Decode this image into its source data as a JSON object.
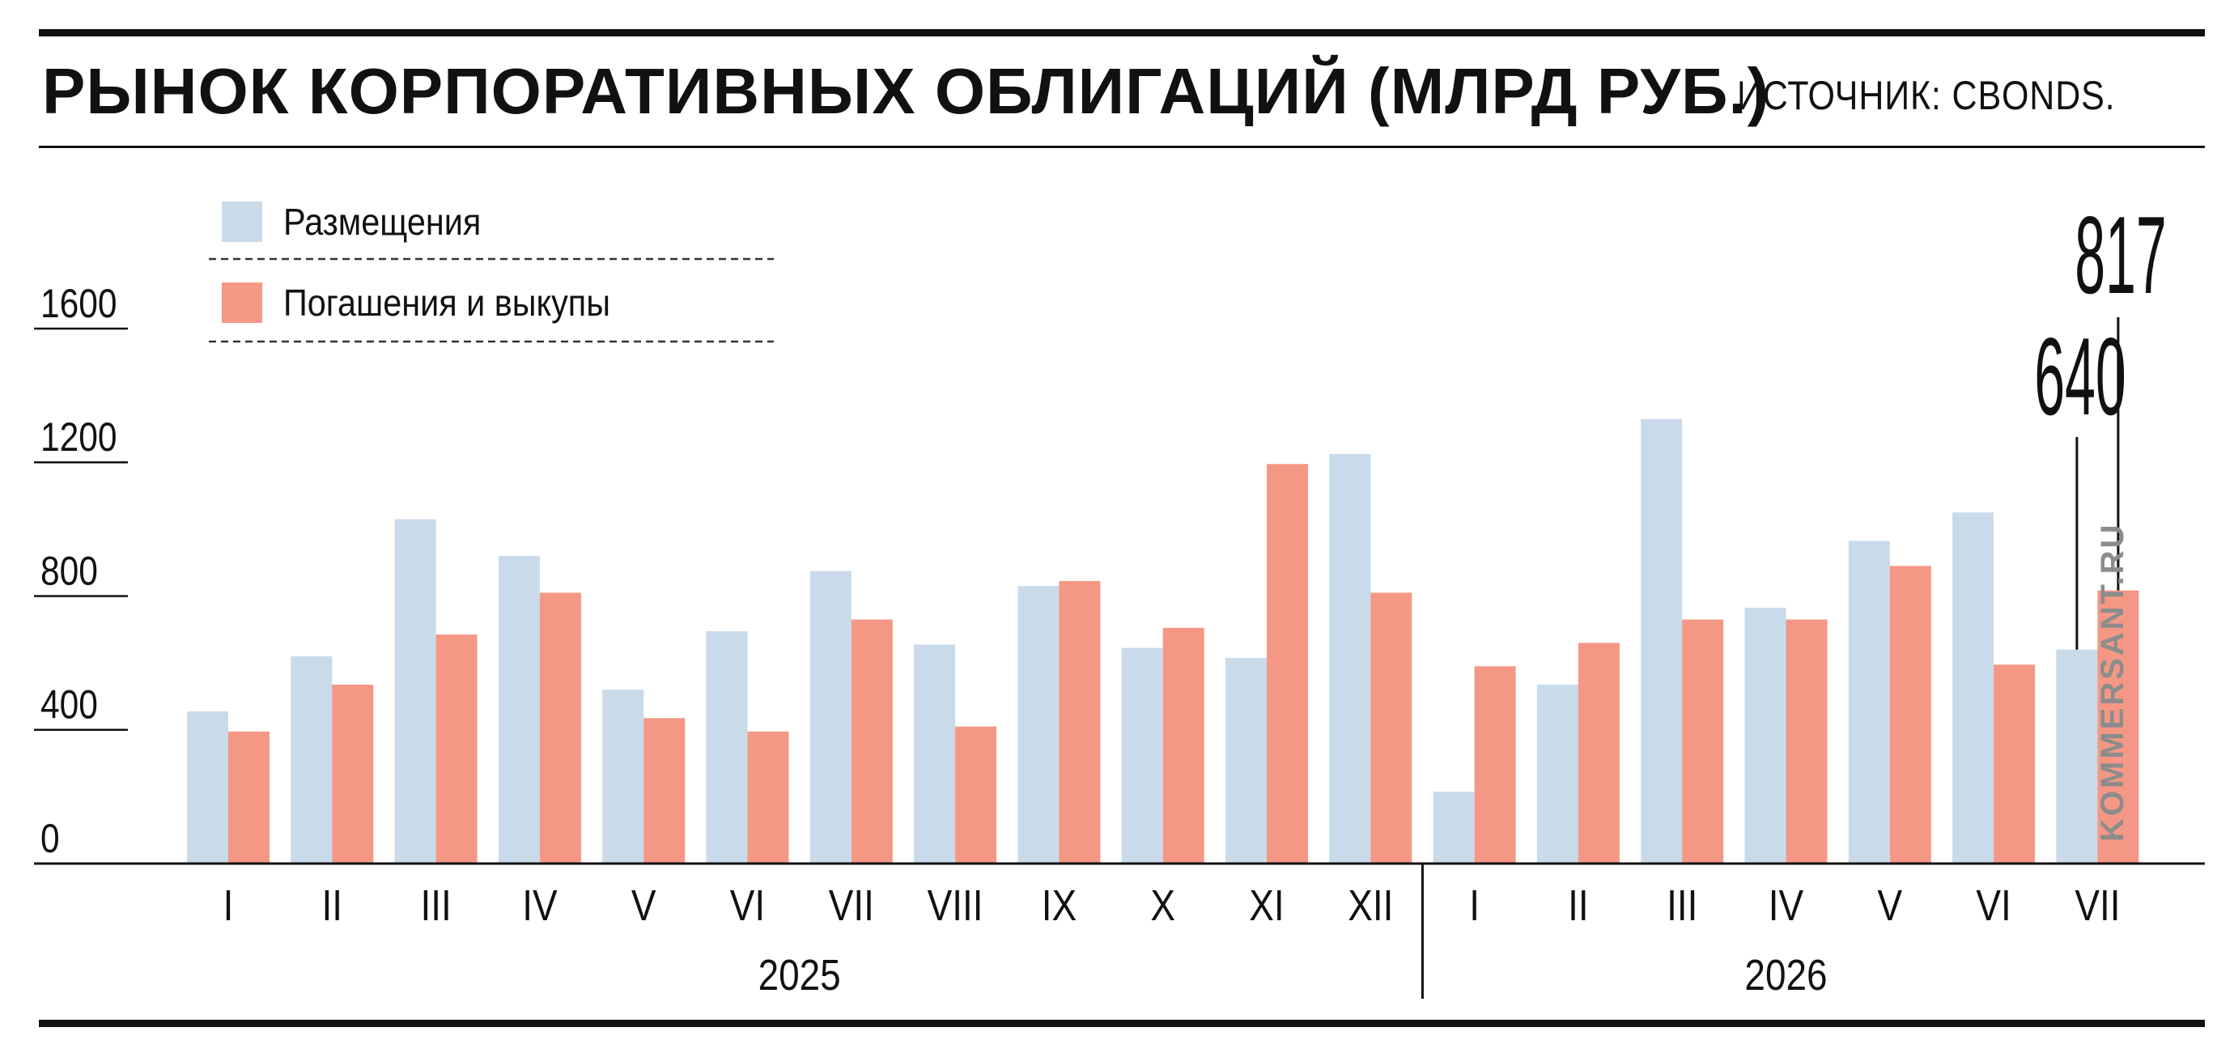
{
  "header": {
    "title": "РЫНОК КОРПОРАТИВНЫХ ОБЛИГАЦИЙ (МЛРД РУБ.)",
    "source": "ИСТОЧНИК: CBONDS."
  },
  "watermark": "KOMMERSANT.RU",
  "colors": {
    "placements": "#c9dbea",
    "redemptions": "#f49885",
    "text": "#111111",
    "watermark": "#8c8c8c"
  },
  "chart_data": {
    "type": "bar",
    "title": "РЫНОК КОРПОРАТИВНЫХ ОБЛИГАЦИЙ (МЛРД РУБ.)",
    "ylim": [
      0,
      1600
    ],
    "yticks": [
      0,
      400,
      800,
      1200,
      1600
    ],
    "ytick_labels": [
      "0",
      "400",
      "800",
      "1200",
      "1600"
    ],
    "grid": false,
    "legend_position": "top-left",
    "categories": [
      "I",
      "II",
      "III",
      "IV",
      "V",
      "VI",
      "VII",
      "VIII",
      "IX",
      "X",
      "XI",
      "XII",
      "I",
      "II",
      "III",
      "IV",
      "V",
      "VI",
      "VII"
    ],
    "groups": [
      {
        "label": "2025",
        "count": 12
      },
      {
        "label": "2026",
        "count": 7
      }
    ],
    "series": [
      {
        "name": "Размещения",
        "color": "#c9dbea",
        "values": [
          455,
          620,
          1030,
          920,
          520,
          695,
          875,
          655,
          830,
          645,
          615,
          1225,
          215,
          535,
          1330,
          765,
          965,
          1050,
          640
        ]
      },
      {
        "name": "Погашения и выкупы",
        "color": "#f49885",
        "values": [
          395,
          535,
          685,
          810,
          435,
          395,
          730,
          410,
          845,
          705,
          1195,
          810,
          590,
          660,
          730,
          730,
          890,
          595,
          817
        ]
      }
    ],
    "annotations": [
      {
        "text": "640",
        "series": 0,
        "index": 18,
        "value": 640
      },
      {
        "text": "817",
        "series": 1,
        "index": 18,
        "value": 817
      }
    ]
  }
}
